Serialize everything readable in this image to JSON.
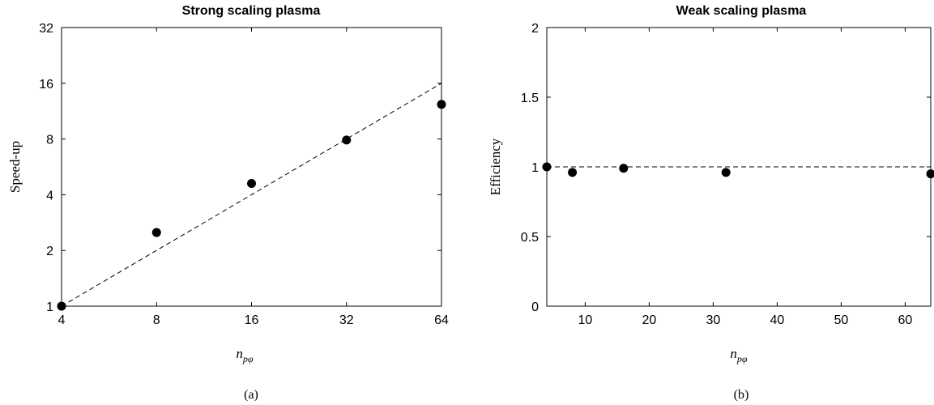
{
  "chart_data": [
    {
      "type": "scatter",
      "title": "Strong scaling plasma",
      "xlabel": "n",
      "xlabel_sub": "pφ",
      "ylabel": "Speed-up",
      "caption": "(a)",
      "xscale": "log2",
      "yscale": "log2",
      "xlim": [
        4,
        64
      ],
      "ylim": [
        1,
        32
      ],
      "xticks": [
        4,
        8,
        16,
        32,
        64
      ],
      "yticks": [
        1,
        2,
        4,
        8,
        16,
        32
      ],
      "xtick_labels": [
        "4",
        "8",
        "16",
        "32",
        "64"
      ],
      "ytick_labels": [
        "1",
        "2",
        "4",
        "8",
        "16",
        "32"
      ],
      "series": [
        {
          "kind": "points",
          "x": [
            4,
            8,
            16,
            32,
            64
          ],
          "y": [
            1,
            2.5,
            4.6,
            7.9,
            12.3
          ]
        },
        {
          "kind": "ideal-line",
          "style": "dashed",
          "x": [
            4,
            64
          ],
          "y": [
            1,
            16
          ]
        }
      ],
      "grid": false
    },
    {
      "type": "scatter",
      "title": "Weak scaling plasma",
      "xlabel": "n",
      "xlabel_sub": "pφ",
      "ylabel": "Efficiency",
      "caption": "(b)",
      "xscale": "linear",
      "yscale": "linear",
      "xlim": [
        4,
        64
      ],
      "ylim": [
        0,
        2
      ],
      "xticks": [
        10,
        20,
        30,
        40,
        50,
        60
      ],
      "yticks": [
        0,
        0.5,
        1,
        1.5,
        2
      ],
      "xtick_labels": [
        "10",
        "20",
        "30",
        "40",
        "50",
        "60"
      ],
      "ytick_labels": [
        "0",
        "0.5",
        "1",
        "1.5",
        "2"
      ],
      "series": [
        {
          "kind": "points",
          "x": [
            4,
            8,
            16,
            32,
            64
          ],
          "y": [
            1.0,
            0.96,
            0.99,
            0.96,
            0.95
          ]
        },
        {
          "kind": "ideal-line",
          "style": "dashed",
          "x": [
            4,
            64
          ],
          "y": [
            1,
            1
          ]
        }
      ],
      "grid": false
    }
  ],
  "colors": {
    "axis": "#000000",
    "marker": "#000000",
    "line": "#000000"
  }
}
